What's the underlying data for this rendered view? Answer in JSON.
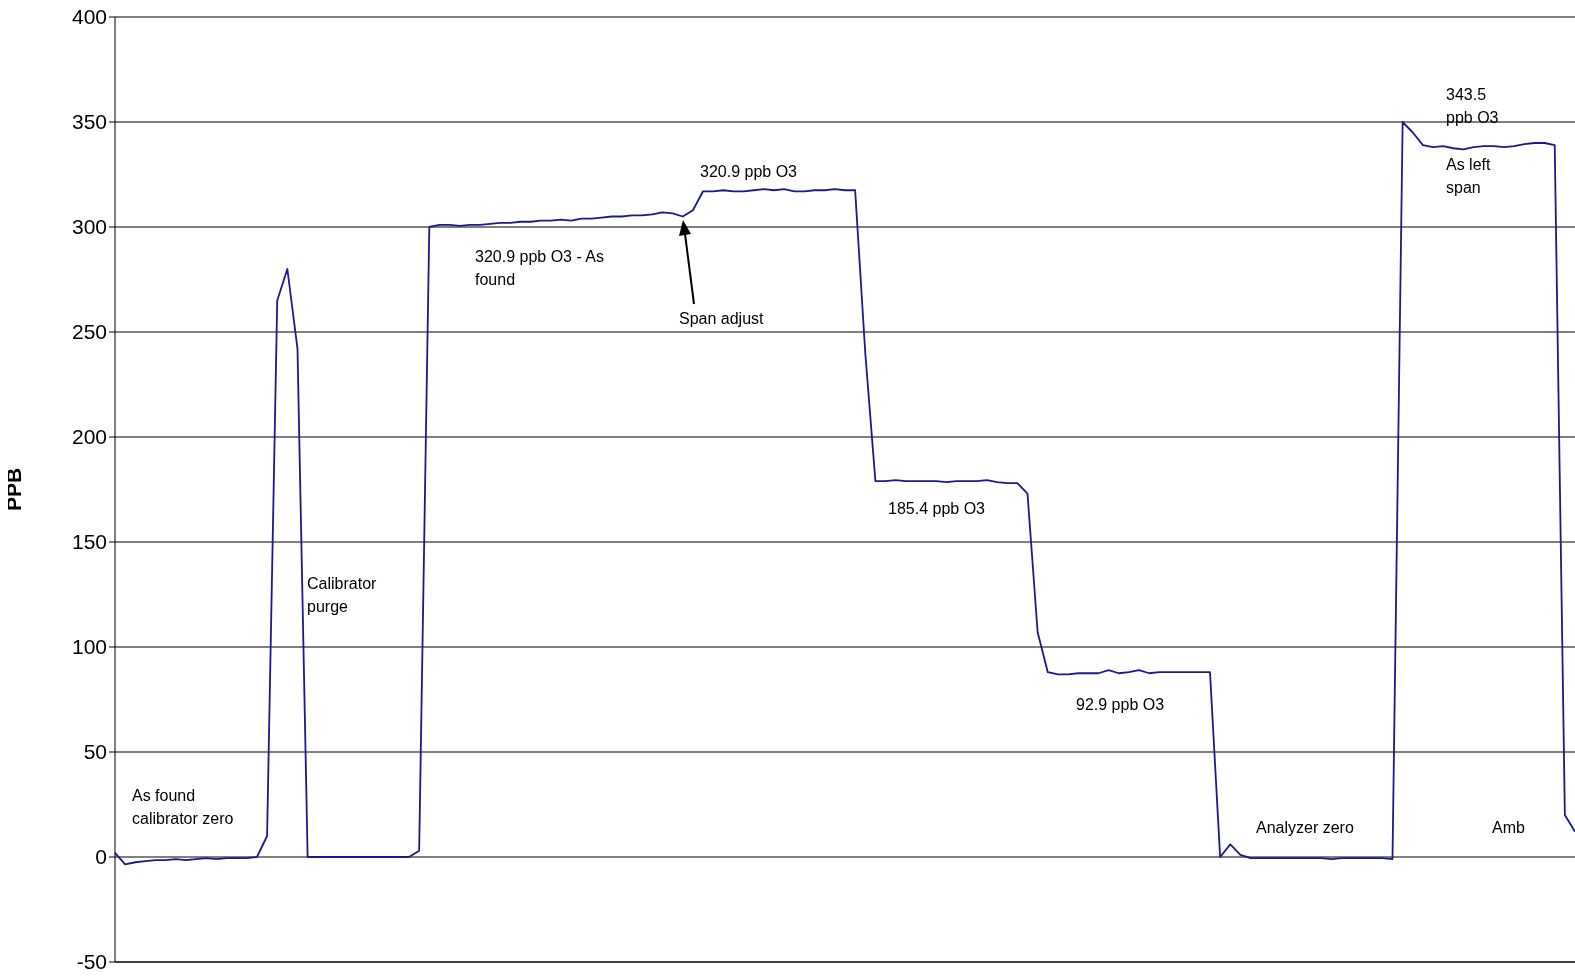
{
  "chart_data": {
    "type": "line",
    "ylabel": "PPB",
    "ylim": [
      -50,
      400
    ],
    "yticks": [
      -50,
      0,
      50,
      100,
      150,
      200,
      250,
      300,
      350,
      400
    ],
    "grid": "y",
    "marker": "none",
    "line_style": "solid",
    "tick_labels": "y",
    "categories": [
      null,
      null,
      null,
      null,
      null,
      null,
      null,
      null,
      null,
      null,
      null,
      null,
      null,
      null,
      null,
      null,
      null,
      null,
      null,
      null,
      null,
      null,
      null,
      null,
      null,
      null,
      null,
      null,
      null,
      null,
      null,
      null,
      null,
      null,
      null,
      null,
      null,
      null,
      null,
      null,
      null,
      null,
      null,
      null,
      null,
      null,
      null,
      null,
      null,
      null,
      null,
      null,
      null,
      null,
      null,
      null,
      null,
      null,
      null,
      null,
      null,
      null,
      null,
      null,
      null,
      null,
      null,
      null,
      null,
      null,
      null,
      null,
      null,
      null,
      null,
      null,
      null,
      null,
      null,
      null,
      null,
      null,
      null,
      null,
      null,
      null,
      null,
      null,
      null,
      null,
      null,
      null,
      null,
      null,
      null,
      null,
      null,
      null,
      null,
      null,
      null,
      null,
      null,
      null,
      null,
      null,
      null,
      null,
      null,
      null,
      null,
      null,
      null,
      null,
      null,
      null,
      null,
      null,
      null,
      null,
      null,
      null,
      null,
      null,
      null,
      null,
      null,
      null,
      null,
      null,
      null,
      null,
      null,
      null,
      null,
      null,
      null,
      null,
      null,
      null,
      null,
      null,
      null,
      null,
      null
    ],
    "series": [
      {
        "color": "#1a1a8c",
        "values": [
          2,
          -3.5,
          -2.5,
          -2,
          -1.5,
          -1.5,
          -1,
          -1.5,
          -1,
          -0.5,
          -1,
          -0.5,
          -0.5,
          -0.5,
          0,
          10,
          265,
          280,
          242,
          0,
          0,
          0,
          0,
          0,
          0,
          0,
          0,
          0,
          0,
          0,
          3,
          300,
          301,
          301,
          300.5,
          301,
          301,
          301.5,
          302,
          302,
          302.5,
          302.5,
          303,
          303,
          303.5,
          303,
          304,
          304,
          304.5,
          305,
          305,
          305.5,
          305.5,
          306,
          307,
          306.5,
          305,
          308,
          317,
          317,
          317.5,
          317,
          317,
          317.5,
          318,
          317.5,
          318,
          317,
          317,
          317.5,
          317.5,
          318,
          317.5,
          317.5,
          240,
          179,
          179,
          179.5,
          179,
          179,
          179,
          179,
          178.5,
          179,
          179,
          179,
          179.5,
          178.5,
          178,
          178,
          173,
          107,
          88,
          87,
          87,
          87.5,
          87.5,
          87.5,
          89,
          87.5,
          88,
          89,
          87.5,
          88,
          88,
          88,
          88,
          88,
          88,
          0,
          6,
          1,
          -0.5,
          -0.5,
          -0.5,
          -0.5,
          -0.5,
          -0.5,
          -0.5,
          -0.5,
          -1,
          -0.5,
          -0.5,
          -0.5,
          -0.5,
          -0.5,
          -1,
          350,
          345,
          339,
          338,
          338.5,
          337.5,
          337,
          338,
          338.5,
          338.5,
          338,
          338.5,
          339.5,
          340,
          340,
          339,
          20,
          12
        ]
      }
    ],
    "annotations": [
      "As found calibrator zero",
      "Calibrator purge",
      "320.9 ppb O3 - As found",
      "320.9 ppb O3",
      "Span adjust",
      "185.4 ppb O3",
      "92.9 ppb O3",
      "Analyzer zero",
      "343.5 ppb O3",
      "As left span",
      "Amb"
    ]
  }
}
